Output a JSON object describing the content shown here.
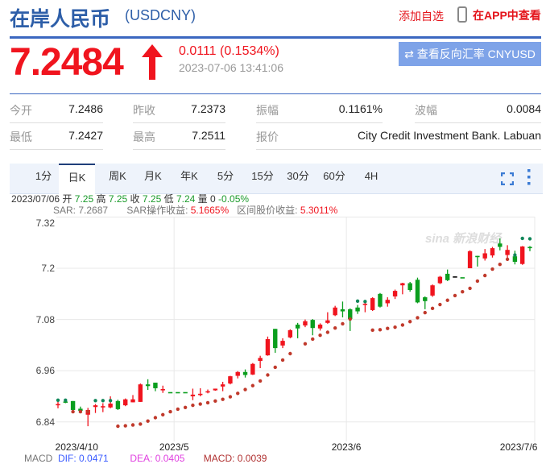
{
  "header": {
    "title": "在岸人民币",
    "code": "(USDCNY)",
    "add_watch": "添加自选",
    "view_app": "在APP中查看",
    "phone_icon": "phone-icon"
  },
  "quote": {
    "price": "7.2484",
    "direction": "up",
    "change": "0.0111 (0.1534%)",
    "time": "2023-07-06 13:41:06",
    "reverse_button": "⇄ 查看反向汇率 CNYUSD"
  },
  "stats": [
    {
      "label": "今开",
      "value": "7.2486"
    },
    {
      "label": "昨收",
      "value": "7.2373"
    },
    {
      "label": "振幅",
      "value": "0.1161%"
    },
    {
      "label": "波幅",
      "value": "0.0084"
    },
    {
      "label": "最低",
      "value": "7.2427"
    },
    {
      "label": "最高",
      "value": "7.2511"
    },
    {
      "label": "报价",
      "value": "City Credit Investment Bank. Labuan"
    }
  ],
  "tabs": [
    {
      "label": "1分"
    },
    {
      "label": "日K",
      "active": true
    },
    {
      "label": "周K"
    },
    {
      "label": "月K"
    },
    {
      "label": "年K"
    },
    {
      "label": "5分"
    },
    {
      "label": "15分"
    },
    {
      "label": "30分"
    },
    {
      "label": "60分"
    },
    {
      "label": "4H"
    }
  ],
  "info": {
    "date": "2023/07/06",
    "open_label": "开",
    "open": "7.25",
    "high_label": "高",
    "high": "7.25",
    "close_label": "收",
    "close": "7.25",
    "low_label": "低",
    "low": "7.24",
    "vol_label": "量",
    "vol": "0",
    "pct": "-0.05%"
  },
  "sar_info": {
    "sar": "SAR: 7.2687",
    "op_label": "SAR操作收益:",
    "op": "5.1665%",
    "range_label": "区间股价收益:",
    "range": "5.3011%"
  },
  "macd": {
    "label": "MACD",
    "dif": "DIF: 0.0471",
    "dea": "DEA: 0.0405",
    "macd": "MACD: 0.0039"
  },
  "watermark": "sina 新浪财经",
  "colors": {
    "up": "#f0141e",
    "down": "#0a9e1e",
    "sar_below": "#c0392b",
    "sar_above": "#11875a",
    "accent": "#3b67c0"
  },
  "chart_data": {
    "type": "candlestick",
    "ylim": [
      6.82,
      7.32
    ],
    "yticks": [
      "7.32",
      "7.2",
      "7.08",
      "6.96",
      "6.84"
    ],
    "xticks": [
      {
        "label": "2023/4/10",
        "index": 2.5
      },
      {
        "label": "2023/5",
        "index": 15.5,
        "grid": true
      },
      {
        "label": "2023/6",
        "index": 38.5,
        "grid": true
      },
      {
        "label": "2023/7/6",
        "index": 61.5
      }
    ],
    "ohlc": [
      [
        6.881,
        6.89,
        6.872,
        6.882
      ],
      [
        6.888,
        6.889,
        6.884,
        6.886
      ],
      [
        6.889,
        6.889,
        6.868,
        6.868
      ],
      [
        6.871,
        6.876,
        6.864,
        6.866
      ],
      [
        6.857,
        6.873,
        6.83,
        6.868
      ],
      [
        6.875,
        6.882,
        6.861,
        6.879
      ],
      [
        6.876,
        6.884,
        6.863,
        6.877
      ],
      [
        6.874,
        6.9,
        6.872,
        6.883
      ],
      [
        6.889,
        6.892,
        6.868,
        6.87
      ],
      [
        6.879,
        6.895,
        6.877,
        6.893
      ],
      [
        6.886,
        6.903,
        6.886,
        6.893
      ],
      [
        6.887,
        6.93,
        6.887,
        6.928
      ],
      [
        6.928,
        6.94,
        6.915,
        6.924
      ],
      [
        6.932,
        6.932,
        6.912,
        6.919
      ],
      [
        6.914,
        6.925,
        6.908,
        6.917
      ],
      [
        6.91,
        6.91,
        6.91,
        6.91
      ],
      [
        6.91,
        6.91,
        6.91,
        6.91
      ],
      [
        6.91,
        6.91,
        6.91,
        6.91
      ],
      [
        6.9,
        6.918,
        6.891,
        6.904
      ],
      [
        6.903,
        6.919,
        6.9,
        6.906
      ],
      [
        6.911,
        6.916,
        6.907,
        6.912
      ],
      [
        6.914,
        6.918,
        6.913,
        6.918
      ],
      [
        6.923,
        6.934,
        6.912,
        6.928
      ],
      [
        6.93,
        6.948,
        6.928,
        6.947
      ],
      [
        6.948,
        6.959,
        6.942,
        6.957
      ],
      [
        6.957,
        6.963,
        6.944,
        6.95
      ],
      [
        6.951,
        6.978,
        6.95,
        6.976
      ],
      [
        6.983,
        6.995,
        6.966,
        6.99
      ],
      [
        6.996,
        7.04,
        6.995,
        7.034
      ],
      [
        7.058,
        7.058,
        7.002,
        7.013
      ],
      [
        7.019,
        7.036,
        7.013,
        7.03
      ],
      [
        7.038,
        7.057,
        7.036,
        7.055
      ],
      [
        7.068,
        7.072,
        7.036,
        7.059
      ],
      [
        7.066,
        7.08,
        7.062,
        7.076
      ],
      [
        7.079,
        7.081,
        7.043,
        7.06
      ],
      [
        7.059,
        7.071,
        7.054,
        7.068
      ],
      [
        7.072,
        7.097,
        7.07,
        7.078
      ],
      [
        7.09,
        7.112,
        7.088,
        7.108
      ],
      [
        7.104,
        7.122,
        7.085,
        7.099
      ],
      [
        7.104,
        7.106,
        7.053,
        7.081
      ],
      [
        7.108,
        7.114,
        7.093,
        7.099
      ],
      [
        7.116,
        7.122,
        7.097,
        7.117
      ],
      [
        7.102,
        7.132,
        7.1,
        7.13
      ],
      [
        7.14,
        7.142,
        7.108,
        7.11
      ],
      [
        7.118,
        7.132,
        7.11,
        7.126
      ],
      [
        7.134,
        7.15,
        7.128,
        7.147
      ],
      [
        7.16,
        7.166,
        7.139,
        7.165
      ],
      [
        7.165,
        7.168,
        7.145,
        7.149
      ],
      [
        7.173,
        7.178,
        7.118,
        7.12
      ],
      [
        7.132,
        7.134,
        7.104,
        7.123
      ],
      [
        7.136,
        7.162,
        7.133,
        7.16
      ],
      [
        7.165,
        7.182,
        7.163,
        7.18
      ],
      [
        7.187,
        7.197,
        7.17,
        7.172
      ],
      [
        7.181,
        7.181,
        7.181,
        7.181
      ],
      [
        7.179,
        7.179,
        7.179,
        7.179
      ],
      [
        7.2,
        7.242,
        7.2,
        7.24
      ],
      [
        7.229,
        7.229,
        7.204,
        7.228
      ],
      [
        7.223,
        7.245,
        7.218,
        7.235
      ],
      [
        7.23,
        7.25,
        7.225,
        7.247
      ],
      [
        7.258,
        7.27,
        7.242,
        7.25
      ],
      [
        7.231,
        7.254,
        7.222,
        7.243
      ],
      [
        7.228,
        7.241,
        7.209,
        7.215
      ],
      [
        7.21,
        7.252,
        7.208,
        7.251
      ],
      [
        7.25,
        7.252,
        7.24,
        7.248
      ]
    ],
    "sar": [
      6.891,
      6.891,
      6.864,
      6.864,
      6.864,
      6.89,
      6.89,
      6.89,
      6.83,
      6.831,
      6.833,
      6.835,
      6.842,
      6.85,
      6.857,
      6.864,
      6.87,
      6.874,
      6.879,
      6.882,
      6.885,
      6.889,
      6.893,
      6.899,
      6.907,
      6.916,
      6.925,
      6.936,
      6.95,
      6.968,
      6.985,
      7.0,
      null,
      7.023,
      7.034,
      7.043,
      7.05,
      7.06,
      7.07,
      7.081,
      7.123,
      7.122,
      7.055,
      7.056,
      7.059,
      7.062,
      7.067,
      7.075,
      7.084,
      7.096,
      7.106,
      7.115,
      7.125,
      7.136,
      7.145,
      7.153,
      7.17,
      7.183,
      7.198,
      7.209,
      7.221,
      7.231,
      7.27,
      7.269
    ]
  }
}
